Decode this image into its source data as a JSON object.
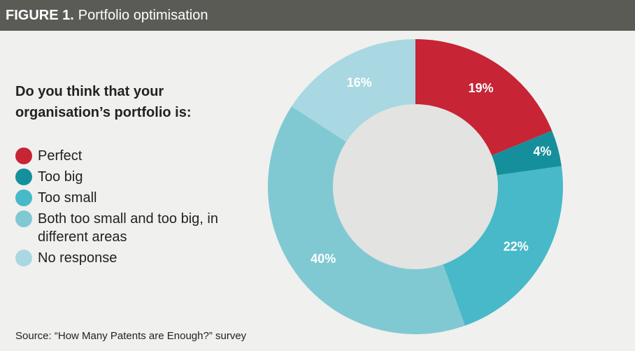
{
  "chart_data": {
    "type": "pie",
    "figure_label": "FIGURE 1.",
    "title": "Portfolio optimisation",
    "question": "Do you think that your organisation’s portfolio is:",
    "categories": [
      "Perfect",
      "Too big",
      "Too small",
      "Both too small and too big, in different areas",
      "No response"
    ],
    "values": [
      19,
      4,
      22,
      40,
      16
    ],
    "value_labels": [
      "19%",
      "4%",
      "22%",
      "40%",
      "16%"
    ],
    "colors": [
      "#c72436",
      "#168f9c",
      "#47b9c8",
      "#80c9d3",
      "#a9d8e2"
    ],
    "source": "Source: “How Many Patents are Enough?” survey"
  }
}
